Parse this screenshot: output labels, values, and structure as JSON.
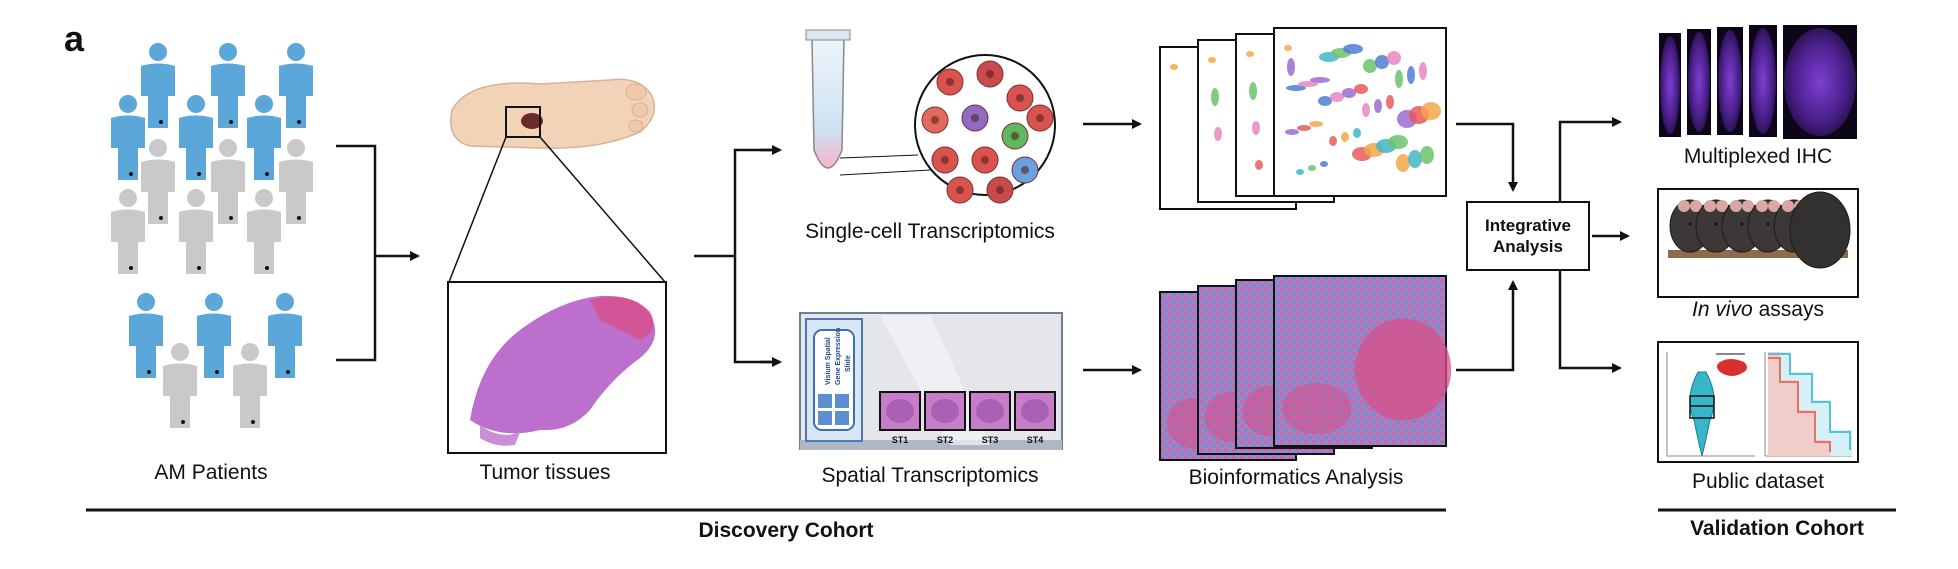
{
  "panel_letter": "a",
  "labels": {
    "am_patients": "AM Patients",
    "tumor_tissues": "Tumor tissues",
    "single_cell": "Single-cell Transcriptomics",
    "spatial": "Spatial Transcriptomics",
    "bioinformatics": "Bioinformatics Analysis",
    "integrative_line1": "Integrative",
    "integrative_line2": "Analysis",
    "multiplexed_ihc": "Multiplexed IHC",
    "in_vivo_italic": "In vivo",
    "in_vivo_rest": " assays",
    "public_dataset": "Public dataset",
    "discovery_cohort": "Discovery Cohort",
    "validation_cohort": "Validation Cohort"
  },
  "visium_slide": {
    "slide_text_line1": "Visium Spatial",
    "slide_text_line2": "Gene Expression",
    "slide_text_line3": "Slide",
    "sections": [
      "ST1",
      "ST2",
      "ST3",
      "ST4"
    ]
  },
  "colors": {
    "patient_blue": "#5ba7da",
    "patient_gray": "#c9c9c9",
    "arrow": "#111111",
    "tissue_purple": "#b056c4",
    "tissue_pink": "#d94f8a",
    "ihc_purple": "#5b2a9c",
    "km_red": "#e76f6a",
    "km_blue": "#5ac0d9",
    "violin_teal": "#38b6c9",
    "violin_red": "#d9302f"
  }
}
